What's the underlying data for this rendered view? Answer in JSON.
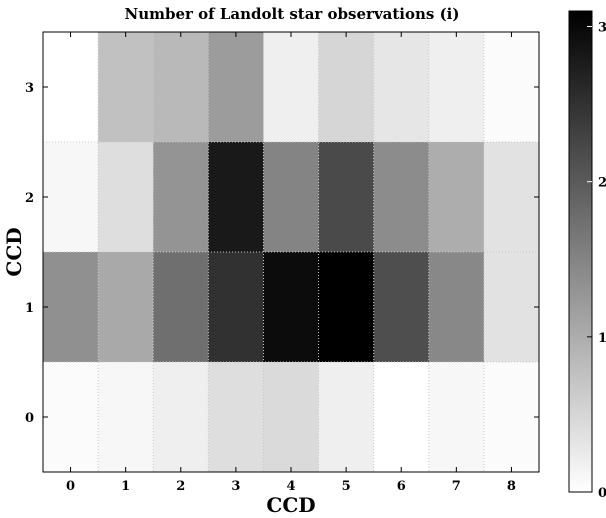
{
  "chart_data": {
    "type": "heatmap",
    "title": "Number of Landolt star observations (i)",
    "xlabel": "CCD",
    "ylabel": "CCD",
    "x_categories": [
      "0",
      "1",
      "2",
      "3",
      "4",
      "5",
      "6",
      "7",
      "8"
    ],
    "y_categories": [
      "0",
      "1",
      "2",
      "3"
    ],
    "colormap": "gray_r",
    "vmin": 0,
    "vmax": 3.1,
    "colorbar_ticks": [
      "0",
      "1",
      "2",
      "3"
    ],
    "grid": true,
    "rows": [
      {
        "y": "3",
        "values": [
          0.0,
          0.75,
          0.85,
          1.2,
          0.2,
          0.5,
          0.3,
          0.2,
          0.05
        ]
      },
      {
        "y": "2",
        "values": [
          0.1,
          0.4,
          1.3,
          2.8,
          1.5,
          2.2,
          1.4,
          1.0,
          0.35
        ]
      },
      {
        "y": "1",
        "values": [
          1.35,
          1.05,
          1.75,
          2.5,
          2.95,
          3.1,
          2.15,
          1.45,
          0.35
        ]
      },
      {
        "y": "0",
        "values": [
          0.05,
          0.1,
          0.2,
          0.4,
          0.45,
          0.2,
          0.0,
          0.1,
          0.05
        ]
      }
    ]
  }
}
